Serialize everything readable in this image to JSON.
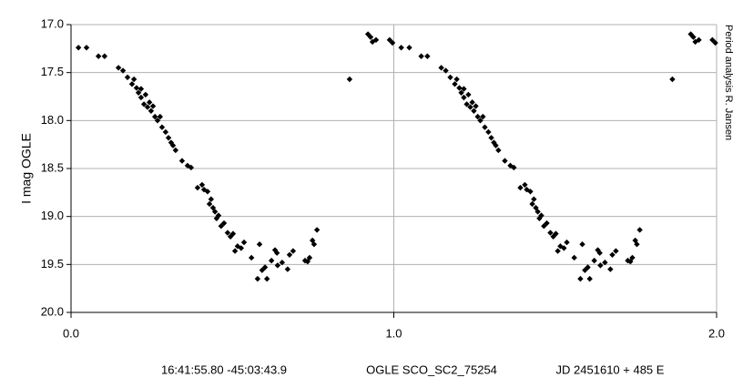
{
  "chart_data": {
    "type": "scatter",
    "ylabel": "I mag OGLE",
    "side_note": "Period analysis R. Jansen",
    "caption": [
      "16:41:55.80 -45:03:43.9",
      "OGLE SCO_SC2_75254",
      "JD 2451610 + 485 E"
    ],
    "xlim": [
      0,
      2
    ],
    "xticks": [
      {
        "value": 0,
        "label": "0.0"
      },
      {
        "value": 1,
        "label": "1.0"
      },
      {
        "value": 2,
        "label": "2.0"
      }
    ],
    "ylim": [
      17,
      20
    ],
    "invert_y": true,
    "yticks": [
      {
        "value": 17,
        "label": "17.0"
      },
      17.5,
      {
        "value": 18,
        "label": "18.0"
      },
      18.5,
      {
        "value": 19,
        "label": "19.0"
      },
      19.5,
      {
        "value": 20,
        "label": "20.0"
      }
    ],
    "grid": true,
    "series": [
      {
        "color": "#000000",
        "x": [
          0.023,
          0.048,
          0.085,
          0.104,
          0.147,
          0.161,
          0.175,
          0.189,
          0.195,
          0.203,
          0.209,
          0.217,
          0.217,
          0.226,
          0.231,
          0.237,
          0.243,
          0.248,
          0.254,
          0.26,
          0.268,
          0.276,
          0.282,
          0.293,
          0.302,
          0.31,
          0.316,
          0.324,
          0.344,
          0.361,
          0.372,
          0.392,
          0.406,
          0.412,
          0.423,
          0.429,
          0.434,
          0.44,
          0.446,
          0.451,
          0.457,
          0.465,
          0.474,
          0.485,
          0.494,
          0.502,
          0.508,
          0.516,
          0.527,
          0.536,
          0.559,
          0.578,
          0.584,
          0.592,
          0.601,
          0.607,
          0.621,
          0.632,
          0.638,
          0.64,
          0.654,
          0.671,
          0.677,
          0.688,
          0.725,
          0.733,
          0.739,
          0.748,
          0.753,
          0.762,
          0.863,
          0.92,
          0.928,
          0.934,
          0.945,
          0.987,
          0.996,
          1.023,
          1.048,
          1.085,
          1.104,
          1.147,
          1.161,
          1.175,
          1.189,
          1.195,
          1.203,
          1.209,
          1.217,
          1.217,
          1.226,
          1.231,
          1.237,
          1.243,
          1.248,
          1.254,
          1.26,
          1.268,
          1.276,
          1.282,
          1.293,
          1.302,
          1.31,
          1.316,
          1.324,
          1.344,
          1.361,
          1.372,
          1.392,
          1.406,
          1.412,
          1.423,
          1.429,
          1.434,
          1.44,
          1.446,
          1.451,
          1.457,
          1.465,
          1.474,
          1.485,
          1.494,
          1.502,
          1.508,
          1.516,
          1.527,
          1.536,
          1.559,
          1.578,
          1.584,
          1.592,
          1.601,
          1.607,
          1.621,
          1.632,
          1.638,
          1.64,
          1.654,
          1.671,
          1.677,
          1.688,
          1.725,
          1.733,
          1.739,
          1.748,
          1.753,
          1.762,
          1.863,
          1.92,
          1.928,
          1.934,
          1.945,
          1.987,
          1.996
        ],
        "values": [
          17.24,
          17.24,
          17.33,
          17.33,
          17.45,
          17.48,
          17.55,
          17.62,
          17.57,
          17.66,
          17.71,
          17.67,
          17.76,
          17.83,
          17.73,
          17.86,
          17.81,
          17.9,
          17.85,
          17.96,
          18.0,
          17.96,
          18.07,
          18.12,
          18.18,
          18.23,
          18.26,
          18.31,
          18.42,
          18.47,
          18.49,
          18.7,
          18.67,
          18.72,
          18.74,
          18.87,
          18.82,
          18.91,
          18.95,
          19.02,
          18.99,
          19.1,
          19.07,
          19.17,
          19.21,
          19.18,
          19.36,
          19.31,
          19.33,
          19.27,
          19.43,
          19.65,
          19.29,
          19.56,
          19.53,
          19.65,
          19.46,
          19.35,
          19.38,
          19.51,
          19.48,
          19.55,
          19.4,
          19.36,
          19.46,
          19.47,
          19.43,
          19.25,
          19.29,
          19.14,
          17.57,
          17.1,
          17.13,
          17.18,
          17.16,
          17.16,
          17.19,
          17.24,
          17.24,
          17.33,
          17.33,
          17.45,
          17.48,
          17.55,
          17.62,
          17.57,
          17.66,
          17.71,
          17.67,
          17.76,
          17.83,
          17.73,
          17.86,
          17.81,
          17.9,
          17.85,
          17.96,
          18.0,
          17.96,
          18.07,
          18.12,
          18.18,
          18.23,
          18.26,
          18.31,
          18.42,
          18.47,
          18.49,
          18.7,
          18.67,
          18.72,
          18.74,
          18.87,
          18.82,
          18.91,
          18.95,
          19.02,
          18.99,
          19.1,
          19.07,
          19.17,
          19.21,
          19.18,
          19.36,
          19.31,
          19.33,
          19.27,
          19.43,
          19.65,
          19.29,
          19.56,
          19.53,
          19.65,
          19.46,
          19.35,
          19.38,
          19.51,
          19.48,
          19.55,
          19.4,
          19.36,
          19.46,
          19.47,
          19.43,
          19.25,
          19.29,
          19.14,
          17.57,
          17.1,
          17.13,
          17.18,
          17.16,
          17.16,
          17.19
        ]
      }
    ]
  }
}
